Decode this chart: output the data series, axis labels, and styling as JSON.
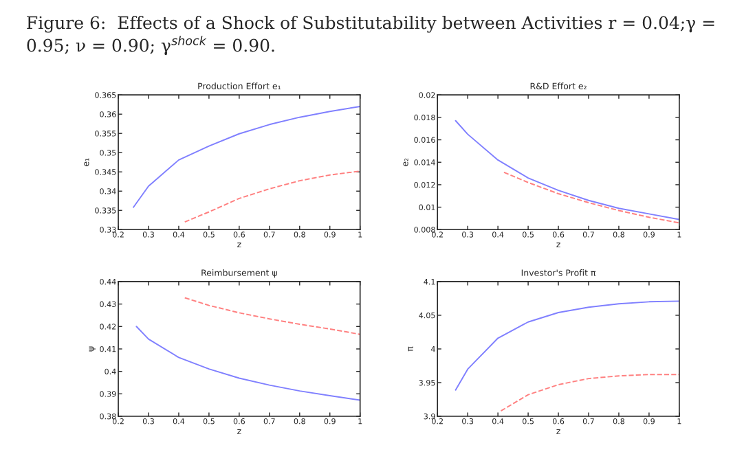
{
  "chart_data": [
    {
      "type": "line",
      "title": "Production Effort e₁",
      "xlabel": "z",
      "ylabel": "e₁",
      "annotations": [
        "Figure 6:  Effects of a Shock of Substitutability between Activities r = 0.04;γ = 0.95; ν = 0.90; γ$^{shock}$ = 0.90."
      ],
      "xlim": [
        0.2,
        1
      ],
      "xticks": [
        0.2,
        0.3,
        0.4,
        0.5,
        0.6,
        0.7,
        0.8,
        0.9,
        1
      ],
      "ylim": [
        0.33,
        0.365
      ],
      "yticks": [
        0.33,
        0.335,
        0.34,
        0.345,
        0.35,
        0.355,
        0.36,
        0.365
      ],
      "series": [
        {
          "color": "#8080ff",
          "line_style": "solid",
          "x": [
            0.25,
            0.3,
            0.4,
            0.5,
            0.6,
            0.7,
            0.8,
            0.9,
            1
          ],
          "values": [
            0.3358,
            0.3413,
            0.3481,
            0.3517,
            0.3549,
            0.3573,
            0.3592,
            0.3607,
            0.362
          ]
        },
        {
          "color": "#ff8080",
          "line_style": "dashed",
          "x": [
            0.42,
            0.5,
            0.6,
            0.7,
            0.8,
            0.9,
            1
          ],
          "values": [
            0.332,
            0.3346,
            0.3381,
            0.3406,
            0.3427,
            0.3442,
            0.3452
          ]
        }
      ]
    },
    {
      "type": "line",
      "title": "R&D Effort e₂",
      "xlabel": "z",
      "ylabel": "e₂",
      "xlim": [
        0.2,
        1
      ],
      "xticks": [
        0.2,
        0.3,
        0.4,
        0.5,
        0.6,
        0.7,
        0.8,
        0.9,
        1
      ],
      "ylim": [
        0.008,
        0.02
      ],
      "yticks": [
        0.008,
        0.01,
        0.012,
        0.014,
        0.016,
        0.018,
        0.02
      ],
      "series": [
        {
          "color": "#8080ff",
          "line_style": "solid",
          "x": [
            0.26,
            0.3,
            0.4,
            0.5,
            0.6,
            0.7,
            0.8,
            0.9,
            1
          ],
          "values": [
            0.0177,
            0.0165,
            0.0142,
            0.0126,
            0.0115,
            0.0106,
            0.0099,
            0.0094,
            0.0089
          ]
        },
        {
          "color": "#ff8080",
          "line_style": "dashed",
          "x": [
            0.42,
            0.5,
            0.6,
            0.7,
            0.8,
            0.9,
            1
          ],
          "values": [
            0.0131,
            0.0122,
            0.0112,
            0.0104,
            0.0097,
            0.0091,
            0.0086
          ]
        }
      ]
    },
    {
      "type": "line",
      "title": "Reimbursement ψ",
      "xlabel": "z",
      "ylabel": "ψ",
      "xlim": [
        0.2,
        1
      ],
      "xticks": [
        0.2,
        0.3,
        0.4,
        0.5,
        0.6,
        0.7,
        0.8,
        0.9,
        1
      ],
      "ylim": [
        0.38,
        0.44
      ],
      "yticks": [
        0.38,
        0.39,
        0.4,
        0.41,
        0.42,
        0.43,
        0.44
      ],
      "series": [
        {
          "color": "#8080ff",
          "line_style": "solid",
          "x": [
            0.26,
            0.3,
            0.4,
            0.5,
            0.6,
            0.7,
            0.8,
            0.9,
            1
          ],
          "values": [
            0.42,
            0.4144,
            0.4062,
            0.4011,
            0.397,
            0.3939,
            0.3913,
            0.3892,
            0.3872
          ]
        },
        {
          "color": "#ff8080",
          "line_style": "dashed",
          "x": [
            0.42,
            0.5,
            0.6,
            0.7,
            0.8,
            0.9,
            1
          ],
          "values": [
            0.4328,
            0.4294,
            0.4261,
            0.4234,
            0.421,
            0.4189,
            0.4165
          ]
        }
      ]
    },
    {
      "type": "line",
      "title": "Investor's Profit π",
      "xlabel": "z",
      "ylabel": "π",
      "xlim": [
        0.2,
        1
      ],
      "xticks": [
        0.2,
        0.3,
        0.4,
        0.5,
        0.6,
        0.7,
        0.8,
        0.9,
        1
      ],
      "ylim": [
        3.9,
        4.1
      ],
      "yticks": [
        3.9,
        3.95,
        4,
        4.05,
        4.1
      ],
      "series": [
        {
          "color": "#8080ff",
          "line_style": "solid",
          "x": [
            0.26,
            0.3,
            0.4,
            0.5,
            0.6,
            0.7,
            0.8,
            0.9,
            1
          ],
          "values": [
            3.939,
            3.97,
            4.016,
            4.04,
            4.054,
            4.062,
            4.067,
            4.07,
            4.071
          ]
        },
        {
          "color": "#ff8080",
          "line_style": "dashed",
          "x": [
            0.41,
            0.5,
            0.6,
            0.7,
            0.8,
            0.9,
            1
          ],
          "values": [
            3.908,
            3.932,
            3.947,
            3.956,
            3.96,
            3.962,
            3.962
          ]
        }
      ]
    }
  ]
}
